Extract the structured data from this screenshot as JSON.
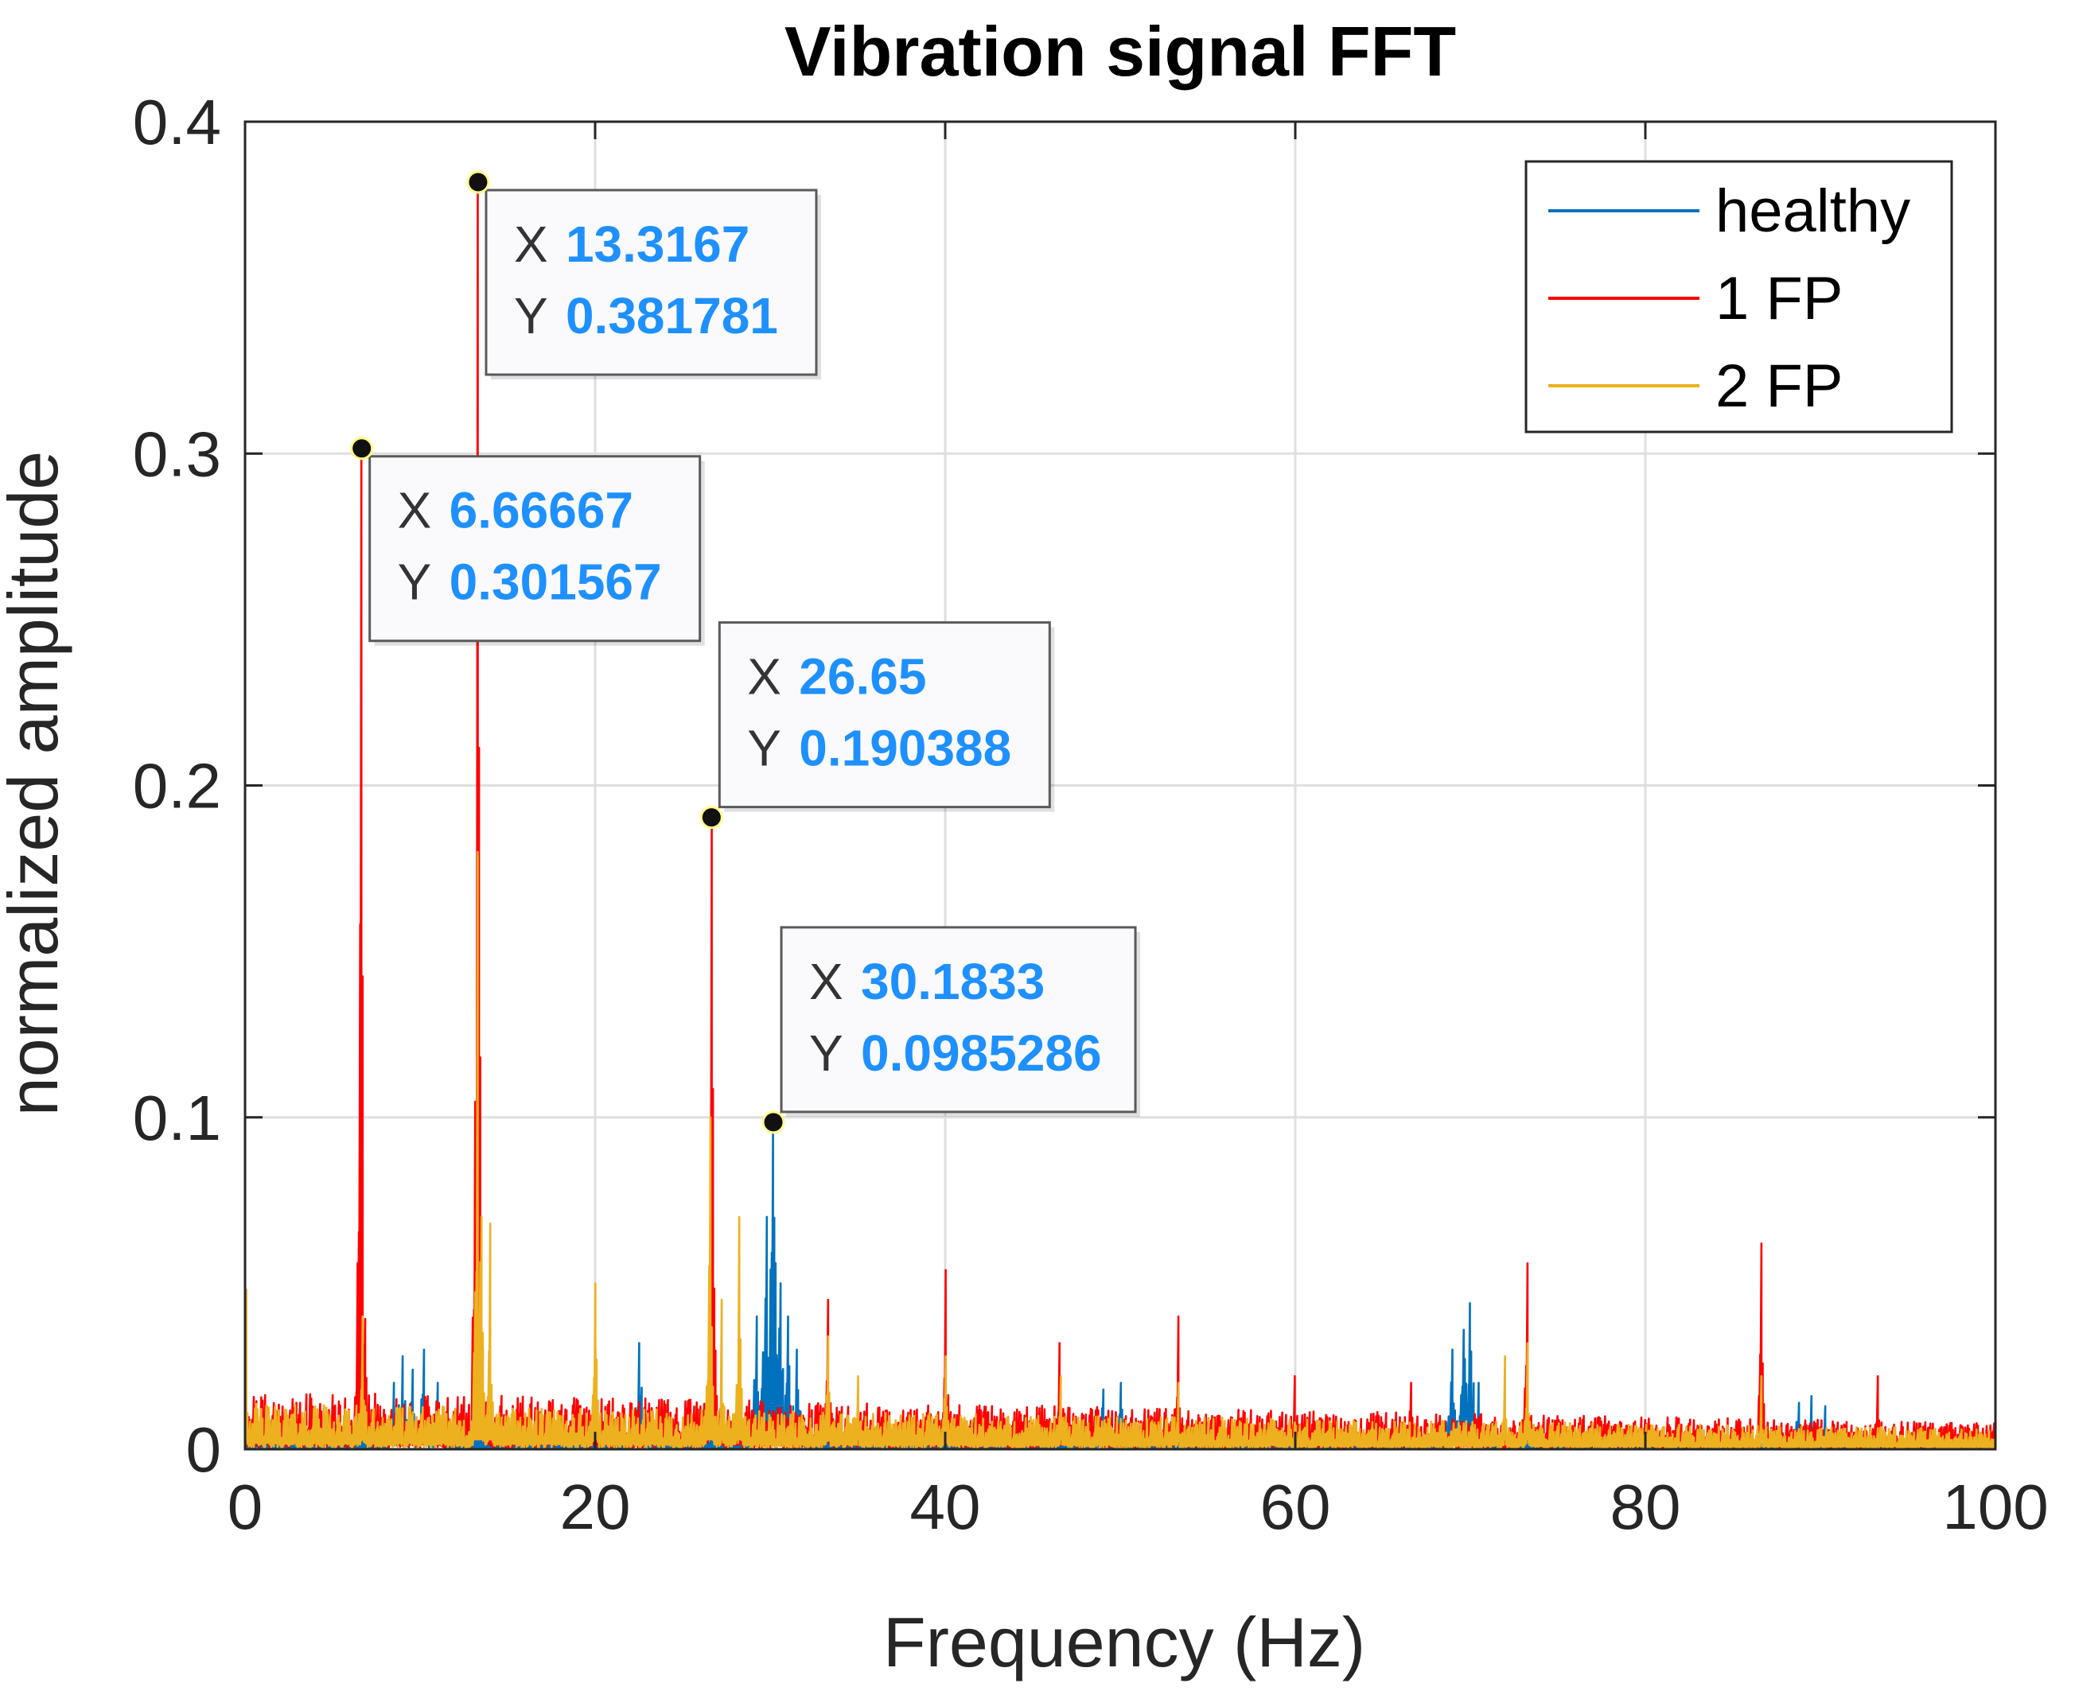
{
  "chart_data": {
    "type": "line",
    "title": "Vibration signal FFT",
    "xlabel": "Frequency (Hz)",
    "ylabel": "normalized amplitude",
    "xlim": [
      0,
      100
    ],
    "ylim": [
      0,
      0.4
    ],
    "xticks": [
      0,
      20,
      40,
      60,
      80,
      100
    ],
    "xtick_labels": [
      "0",
      "20",
      "40",
      "60",
      "80",
      "100"
    ],
    "yticks": [
      0,
      0.1,
      0.2,
      0.3,
      0.4
    ],
    "ytick_labels": [
      "0",
      "0.1",
      "0.2",
      "0.3",
      "0.4"
    ],
    "grid": true,
    "legend_position": "top-right",
    "series": [
      {
        "name": "healthy",
        "color": "#0072BD",
        "peaks": [
          [
            8.5,
            0.02
          ],
          [
            9,
            0.028
          ],
          [
            9.6,
            0.024
          ],
          [
            10.2,
            0.03
          ],
          [
            11,
            0.02
          ],
          [
            22.5,
            0.032
          ],
          [
            29.2,
            0.04
          ],
          [
            29.8,
            0.07
          ],
          [
            30.1833,
            0.0985286
          ],
          [
            30.6,
            0.05
          ],
          [
            31,
            0.04
          ],
          [
            31.5,
            0.03
          ],
          [
            49,
            0.018
          ],
          [
            50,
            0.02
          ],
          [
            69,
            0.03
          ],
          [
            69.6,
            0.036
          ],
          [
            70,
            0.044
          ],
          [
            70.5,
            0.02
          ],
          [
            88.8,
            0.014
          ],
          [
            89.5,
            0.016
          ],
          [
            90.3,
            0.013
          ]
        ]
      },
      {
        "name": "1 FP",
        "color": "#FF0000",
        "peaks": [
          [
            6.66667,
            0.301567
          ],
          [
            13.3167,
            0.381781
          ],
          [
            20,
            0.03
          ],
          [
            26.65,
            0.190388
          ],
          [
            33.3,
            0.045
          ],
          [
            40,
            0.054
          ],
          [
            46.5,
            0.032
          ],
          [
            53.3,
            0.04
          ],
          [
            60,
            0.022
          ],
          [
            66.6,
            0.02
          ],
          [
            73.3,
            0.056
          ],
          [
            86.6,
            0.062
          ],
          [
            93.3,
            0.022
          ]
        ]
      },
      {
        "name": "2 FP",
        "color": "#EDB120",
        "peaks": [
          [
            0.1,
            0.048
          ],
          [
            6.7,
            0.04
          ],
          [
            13.3,
            0.18
          ],
          [
            13.5,
            0.07
          ],
          [
            14,
            0.068
          ],
          [
            20,
            0.05
          ],
          [
            26.6,
            0.1
          ],
          [
            27.2,
            0.045
          ],
          [
            28.2,
            0.07
          ],
          [
            33.3,
            0.034
          ],
          [
            35,
            0.022
          ],
          [
            40,
            0.028
          ],
          [
            46.6,
            0.022
          ],
          [
            53.3,
            0.02
          ],
          [
            72,
            0.028
          ],
          [
            73.3,
            0.032
          ],
          [
            86.6,
            0.022
          ]
        ]
      }
    ],
    "datatips": [
      {
        "x_label": "X",
        "x_value": "13.3167",
        "y_label": "Y",
        "y_value": "0.381781",
        "x": 13.3167,
        "y": 0.381781
      },
      {
        "x_label": "X",
        "x_value": "6.66667",
        "y_label": "Y",
        "y_value": "0.301567",
        "x": 6.66667,
        "y": 0.301567
      },
      {
        "x_label": "X",
        "x_value": "26.65",
        "y_label": "Y",
        "y_value": "0.190388",
        "x": 26.65,
        "y": 0.190388
      },
      {
        "x_label": "X",
        "x_value": "30.1833",
        "y_label": "Y",
        "y_value": "0.0985286",
        "x": 30.1833,
        "y": 0.0985286
      }
    ],
    "datatip_value_color": "#1E90FF"
  }
}
